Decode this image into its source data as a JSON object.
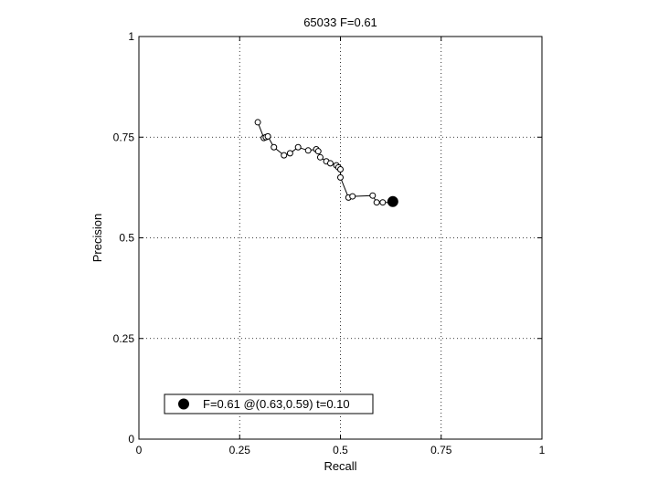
{
  "chart_data": {
    "type": "line",
    "title": "65033 F=0.61",
    "xlabel": "Recall",
    "ylabel": "Precision",
    "xlim": [
      0,
      1
    ],
    "ylim": [
      0,
      1
    ],
    "grid": true,
    "xticks": [
      0,
      0.25,
      0.5,
      0.75,
      1
    ],
    "xtick_labels": [
      "0",
      "0.25",
      "0.5",
      "0.75",
      "1"
    ],
    "yticks": [
      0,
      0.25,
      0.5,
      0.75,
      1
    ],
    "ytick_labels": [
      "0",
      "0.25",
      "0.5",
      "0.75",
      "1"
    ],
    "series": [
      {
        "marker": "open-circle",
        "x": [
          0.295,
          0.31,
          0.315,
          0.32,
          0.335,
          0.36,
          0.375,
          0.395,
          0.42,
          0.44,
          0.445,
          0.45,
          0.465,
          0.475,
          0.49,
          0.495,
          0.5,
          0.5,
          0.52,
          0.53,
          0.58,
          0.59,
          0.605,
          0.63
        ],
        "y": [
          0.787,
          0.748,
          0.75,
          0.752,
          0.725,
          0.705,
          0.71,
          0.725,
          0.717,
          0.72,
          0.715,
          0.7,
          0.69,
          0.685,
          0.68,
          0.675,
          0.67,
          0.65,
          0.6,
          0.603,
          0.605,
          0.588,
          0.588,
          0.588
        ]
      }
    ],
    "best_point": {
      "x": 0.63,
      "y": 0.59,
      "marker": "filled-circle"
    },
    "legend": {
      "position": "bottom-left",
      "label": "F=0.61 @(0.63,0.59) t=0.10"
    }
  }
}
